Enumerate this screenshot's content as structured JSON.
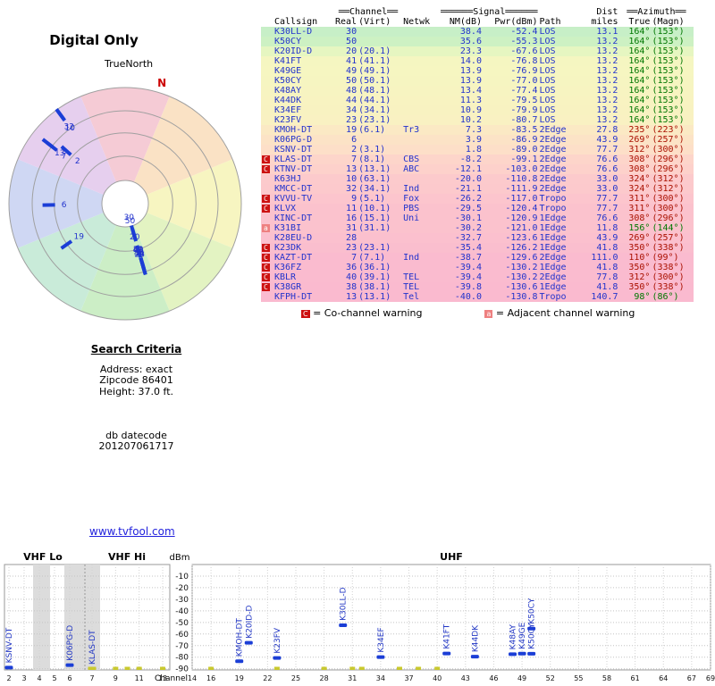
{
  "link_text": "www.tvfool.com",
  "search_criteria": {
    "heading": "Search Criteria",
    "lines": [
      "Address: exact",
      "Zipcode 86401",
      "Height: 37.0 ft."
    ],
    "datecode_label": "db datecode",
    "datecode": "201207061717"
  },
  "table": {
    "header": {
      "channel_deco": "══Channel══",
      "signal_deco": "══════Signal══════",
      "dist_label": "Dist",
      "azimuth_deco": "══Azimuth══",
      "cols": [
        "Callsign",
        "Real",
        "(Virt)",
        "Netwk",
        "NM(dB)",
        "Pwr(dBm)",
        "Path",
        "miles",
        "True",
        "(Magn)"
      ]
    },
    "legend": {
      "co": {
        "badge": "C",
        "text": "= Co-channel warning"
      },
      "adj": {
        "badge": "a",
        "text": "= Adjacent channel warning"
      }
    },
    "rows": [
      {
        "w": "",
        "c": "K30LL-D",
        "real": "30",
        "virt": "",
        "net": "",
        "nm": "38.4",
        "pwr": "-52.4",
        "path": "LOS",
        "mi": "13.1",
        "az_t": "164°",
        "az_m": "(153°)",
        "azc": "g",
        "bg": "#c7efc7"
      },
      {
        "w": "",
        "c": "K50CY",
        "real": "50",
        "virt": "",
        "net": "",
        "nm": "35.6",
        "pwr": "-55.3",
        "path": "LOS",
        "mi": "13.2",
        "az_t": "164°",
        "az_m": "(153°)",
        "azc": "g",
        "bg": "#cdf1c3"
      },
      {
        "w": "",
        "c": "K20ID-D",
        "real": "20",
        "virt": "(20.1)",
        "net": "",
        "nm": "23.3",
        "pwr": "-67.6",
        "path": "LOS",
        "mi": "13.2",
        "az_t": "164°",
        "az_m": "(153°)",
        "azc": "g",
        "bg": "#e6f6c1"
      },
      {
        "w": "",
        "c": "K41FT",
        "real": "41",
        "virt": "(41.1)",
        "net": "",
        "nm": "14.0",
        "pwr": "-76.8",
        "path": "LOS",
        "mi": "13.2",
        "az_t": "164°",
        "az_m": "(153°)",
        "azc": "g",
        "bg": "#f5f6c1"
      },
      {
        "w": "",
        "c": "K49GE",
        "real": "49",
        "virt": "(49.1)",
        "net": "",
        "nm": "13.9",
        "pwr": "-76.9",
        "path": "LOS",
        "mi": "13.2",
        "az_t": "164°",
        "az_m": "(153°)",
        "azc": "g",
        "bg": "#f6f6c1"
      },
      {
        "w": "",
        "c": "K50CY",
        "real": "50",
        "virt": "(50.1)",
        "net": "",
        "nm": "13.9",
        "pwr": "-77.0",
        "path": "LOS",
        "mi": "13.2",
        "az_t": "164°",
        "az_m": "(153°)",
        "azc": "g",
        "bg": "#f6f5c1"
      },
      {
        "w": "",
        "c": "K48AY",
        "real": "48",
        "virt": "(48.1)",
        "net": "",
        "nm": "13.4",
        "pwr": "-77.4",
        "path": "LOS",
        "mi": "13.2",
        "az_t": "164°",
        "az_m": "(153°)",
        "azc": "g",
        "bg": "#f7f4c1"
      },
      {
        "w": "",
        "c": "K44DK",
        "real": "44",
        "virt": "(44.1)",
        "net": "",
        "nm": "11.3",
        "pwr": "-79.5",
        "path": "LOS",
        "mi": "13.2",
        "az_t": "164°",
        "az_m": "(153°)",
        "azc": "g",
        "bg": "#f8f3c1"
      },
      {
        "w": "",
        "c": "K34EF",
        "real": "34",
        "virt": "(34.1)",
        "net": "",
        "nm": "10.9",
        "pwr": "-79.9",
        "path": "LOS",
        "mi": "13.2",
        "az_t": "164°",
        "az_m": "(153°)",
        "azc": "g",
        "bg": "#f8f2c1"
      },
      {
        "w": "",
        "c": "K23FV",
        "real": "23",
        "virt": "(23.1)",
        "net": "",
        "nm": "10.2",
        "pwr": "-80.7",
        "path": "LOS",
        "mi": "13.2",
        "az_t": "164°",
        "az_m": "(153°)",
        "azc": "g",
        "bg": "#f9f1c2"
      },
      {
        "w": "",
        "c": "KMOH-DT",
        "real": "19",
        "virt": "(6.1)",
        "net": "Tr3",
        "nm": "7.3",
        "pwr": "-83.5",
        "path": "2Edge",
        "mi": "27.8",
        "az_t": "235°",
        "az_m": "(223°)",
        "azc": "r",
        "bg": "#fbe9c4"
      },
      {
        "w": "",
        "c": "K06PG-D",
        "real": "6",
        "virt": "",
        "net": "",
        "nm": "3.9",
        "pwr": "-86.9",
        "path": "2Edge",
        "mi": "43.9",
        "az_t": "269°",
        "az_m": "(257°)",
        "azc": "r",
        "bg": "#fce3c6"
      },
      {
        "w": "",
        "c": "KSNV-DT",
        "real": "2",
        "virt": "(3.1)",
        "net": "",
        "nm": "1.8",
        "pwr": "-89.0",
        "path": "2Edge",
        "mi": "77.7",
        "az_t": "312°",
        "az_m": "(300°)",
        "azc": "r",
        "bg": "#fddfc8"
      },
      {
        "w": "C",
        "c": "KLAS-DT",
        "real": "7",
        "virt": "(8.1)",
        "net": "CBS",
        "nm": "-8.2",
        "pwr": "-99.1",
        "path": "2Edge",
        "mi": "76.6",
        "az_t": "308°",
        "az_m": "(296°)",
        "azc": "r",
        "bg": "#fdd5ca"
      },
      {
        "w": "C",
        "c": "KTNV-DT",
        "real": "13",
        "virt": "(13.1)",
        "net": "ABC",
        "nm": "-12.1",
        "pwr": "-103.0",
        "path": "2Edge",
        "mi": "76.6",
        "az_t": "308°",
        "az_m": "(296°)",
        "azc": "r",
        "bg": "#fdd1cb"
      },
      {
        "w": "",
        "c": "K63HJ",
        "real": "10",
        "virt": "(63.1)",
        "net": "",
        "nm": "-20.0",
        "pwr": "-110.8",
        "path": "2Edge",
        "mi": "33.0",
        "az_t": "324°",
        "az_m": "(312°)",
        "azc": "r",
        "bg": "#fccacc"
      },
      {
        "w": "",
        "c": "KMCC-DT",
        "real": "32",
        "virt": "(34.1)",
        "net": "Ind",
        "nm": "-21.1",
        "pwr": "-111.9",
        "path": "2Edge",
        "mi": "33.0",
        "az_t": "324°",
        "az_m": "(312°)",
        "azc": "r",
        "bg": "#fcc9cc"
      },
      {
        "w": "C",
        "c": "KVVU-TV",
        "real": "9",
        "virt": "(5.1)",
        "net": "Fox",
        "nm": "-26.2",
        "pwr": "-117.0",
        "path": "Tropo",
        "mi": "77.7",
        "az_t": "311°",
        "az_m": "(300°)",
        "azc": "r",
        "bg": "#fcc5cd"
      },
      {
        "w": "C",
        "c": "KLVX",
        "real": "11",
        "virt": "(10.1)",
        "net": "PBS",
        "nm": "-29.5",
        "pwr": "-120.4",
        "path": "Tropo",
        "mi": "77.7",
        "az_t": "311°",
        "az_m": "(300°)",
        "azc": "r",
        "bg": "#fbc2cd"
      },
      {
        "w": "",
        "c": "KINC-DT",
        "real": "16",
        "virt": "(15.1)",
        "net": "Uni",
        "nm": "-30.1",
        "pwr": "-120.9",
        "path": "1Edge",
        "mi": "76.6",
        "az_t": "308°",
        "az_m": "(296°)",
        "azc": "r",
        "bg": "#fbc2cd"
      },
      {
        "w": "a",
        "c": "K31BI",
        "real": "31",
        "virt": "(31.1)",
        "net": "",
        "nm": "-30.2",
        "pwr": "-121.0",
        "path": "1Edge",
        "mi": "11.8",
        "az_t": "156°",
        "az_m": "(144°)",
        "azc": "g",
        "bg": "#fbc2cd"
      },
      {
        "w": "",
        "c": "K28EU-D",
        "real": "28",
        "virt": "",
        "net": "",
        "nm": "-32.7",
        "pwr": "-123.6",
        "path": "1Edge",
        "mi": "43.9",
        "az_t": "269°",
        "az_m": "(257°)",
        "azc": "r",
        "bg": "#fbc0ce"
      },
      {
        "w": "C",
        "c": "K23DK",
        "real": "23",
        "virt": "(23.1)",
        "net": "",
        "nm": "-35.4",
        "pwr": "-126.2",
        "path": "1Edge",
        "mi": "41.8",
        "az_t": "350°",
        "az_m": "(338°)",
        "azc": "r",
        "bg": "#fabece"
      },
      {
        "w": "C",
        "c": "KAZT-DT",
        "real": "7",
        "virt": "(7.1)",
        "net": "Ind",
        "nm": "-38.7",
        "pwr": "-129.6",
        "path": "2Edge",
        "mi": "111.0",
        "az_t": "110°",
        "az_m": "(99°)",
        "azc": "r",
        "bg": "#fabbcf"
      },
      {
        "w": "C",
        "c": "K36FZ",
        "real": "36",
        "virt": "(36.1)",
        "net": "",
        "nm": "-39.4",
        "pwr": "-130.2",
        "path": "1Edge",
        "mi": "41.8",
        "az_t": "350°",
        "az_m": "(338°)",
        "azc": "r",
        "bg": "#fabbcf"
      },
      {
        "w": "C",
        "c": "KBLR",
        "real": "40",
        "virt": "(39.1)",
        "net": "TEL",
        "nm": "-39.4",
        "pwr": "-130.2",
        "path": "2Edge",
        "mi": "77.8",
        "az_t": "312°",
        "az_m": "(300°)",
        "azc": "r",
        "bg": "#fabbcf"
      },
      {
        "w": "C",
        "c": "K38GR",
        "real": "38",
        "virt": "(38.1)",
        "net": "TEL",
        "nm": "-39.8",
        "pwr": "-130.6",
        "path": "1Edge",
        "mi": "41.8",
        "az_t": "350°",
        "az_m": "(338°)",
        "azc": "r",
        "bg": "#fabacf"
      },
      {
        "w": "",
        "c": "KFPH-DT",
        "real": "13",
        "virt": "(13.1)",
        "net": "Tel",
        "nm": "-40.0",
        "pwr": "-130.8",
        "path": "Tropo",
        "mi": "140.7",
        "az_t": "98°",
        "az_m": "(86°)",
        "azc": "g",
        "bg": "#fabacf"
      }
    ]
  },
  "chart_data": [
    {
      "type": "scatter",
      "name": "polar-signal-radar",
      "title": "Digital Only",
      "true_north_label": "TrueNorth",
      "north_label": "N",
      "orientation": "true-north-up, strongest signal nearest center",
      "rings_frac": [
        1,
        0.8,
        0.61,
        0.41
      ],
      "center_frac": 0.2,
      "marker_color": "#1b3ed6",
      "label_color": "#2233cc",
      "north_color": "#cc0000",
      "sectors": [
        {
          "from": 337.5,
          "to": 22.5,
          "color": "#f5cbd5"
        },
        {
          "from": 22.5,
          "to": 67.5,
          "color": "#fae2c5"
        },
        {
          "from": 67.5,
          "to": 112.5,
          "color": "#f7f5c1"
        },
        {
          "from": 112.5,
          "to": 157.5,
          "color": "#e3f3c2"
        },
        {
          "from": 157.5,
          "to": 202.5,
          "color": "#cceec6"
        },
        {
          "from": 202.5,
          "to": 247.5,
          "color": "#c9ebd9"
        },
        {
          "from": 247.5,
          "to": 292.5,
          "color": "#cfd7f3"
        },
        {
          "from": 292.5,
          "to": 337.5,
          "color": "#e6cfee"
        }
      ],
      "stations": [
        {
          "label": "30",
          "bearing": 164,
          "nm": 38.4
        },
        {
          "label": "50",
          "bearing": 164,
          "nm": 35.6
        },
        {
          "label": "20",
          "bearing": 164,
          "nm": 23.3
        },
        {
          "label": "41",
          "bearing": 164,
          "nm": 14.0
        },
        {
          "label": "49",
          "bearing": 164,
          "nm": 13.9
        },
        {
          "label": "50",
          "bearing": 164,
          "nm": 13.9
        },
        {
          "label": "48",
          "bearing": 164,
          "nm": 13.4
        },
        {
          "label": "44",
          "bearing": 164,
          "nm": 11.3
        },
        {
          "label": "34",
          "bearing": 164,
          "nm": 10.9
        },
        {
          "label": "23",
          "bearing": 164,
          "nm": 10.2
        },
        {
          "label": "19",
          "bearing": 235,
          "nm": 7.3
        },
        {
          "label": "6",
          "bearing": 269,
          "nm": 3.9
        },
        {
          "label": "2",
          "bearing": 312,
          "nm": 1.8
        },
        {
          "label": "7",
          "bearing": 308,
          "nm": -8.2
        },
        {
          "label": "13",
          "bearing": 308,
          "nm": -12.1
        },
        {
          "label": "10",
          "bearing": 324,
          "nm": -20.0
        },
        {
          "label": "32",
          "bearing": 324,
          "nm": -21.1
        }
      ]
    },
    {
      "type": "scatter",
      "name": "signal-strength-by-channel",
      "ylabel": "dBm",
      "xlabel": "Channel",
      "ylim": [
        -91,
        0
      ],
      "yticks": [
        -10,
        -20,
        -30,
        -40,
        -50,
        -60,
        -70,
        -80,
        -90
      ],
      "bands": [
        {
          "label": "VHF Lo",
          "ch_from": 2,
          "ch_to": 6
        },
        {
          "label": "VHF Hi",
          "ch_from": 7,
          "ch_to": 13
        },
        {
          "label": "UHF",
          "ch_from": 14,
          "ch_to": 69
        }
      ],
      "vhf_ticks": [
        2,
        3,
        4,
        5,
        6,
        7,
        9,
        11,
        13
      ],
      "uhf_ticks": [
        14,
        16,
        19,
        22,
        25,
        28,
        31,
        34,
        37,
        40,
        43,
        46,
        49,
        52,
        55,
        58,
        61,
        64,
        67,
        69
      ],
      "gray_bands": [
        {
          "x": 37,
          "w": 19
        },
        {
          "x": 72,
          "w": 40
        }
      ],
      "marker_color": "#1b3ed6",
      "clipped_color": "#c9c92e",
      "points": [
        {
          "label": "KSNV-DT",
          "ch": 2,
          "dbm": -89.0
        },
        {
          "label": "K06PG-D",
          "ch": 6,
          "dbm": -86.9
        },
        {
          "label": "KLAS-DT",
          "ch": 7,
          "dbm": -99.1
        },
        {
          "label": "KMOH-DT",
          "ch": 19,
          "dbm": -83.5
        },
        {
          "label": "K20ID-D",
          "ch": 20,
          "dbm": -67.6
        },
        {
          "label": "K23FV",
          "ch": 23,
          "dbm": -80.7
        },
        {
          "label": "K30LL-D",
          "ch": 30,
          "dbm": -52.4
        },
        {
          "label": "K34EF",
          "ch": 34,
          "dbm": -79.9
        },
        {
          "label": "K41FT",
          "ch": 41,
          "dbm": -76.8
        },
        {
          "label": "K44DK",
          "ch": 44,
          "dbm": -79.5
        },
        {
          "label": "K48AY",
          "ch": 48,
          "dbm": -77.4
        },
        {
          "label": "K49GE",
          "ch": 49,
          "dbm": -76.9
        },
        {
          "label": "K50CY",
          "ch": 50,
          "dbm": -55.3
        },
        {
          "label": "K50CY",
          "ch": 50,
          "dbm": -77.0
        }
      ],
      "clipped_channels": [
        9,
        10,
        11,
        13,
        16,
        23,
        28,
        31,
        32,
        36,
        38,
        40
      ]
    }
  ]
}
